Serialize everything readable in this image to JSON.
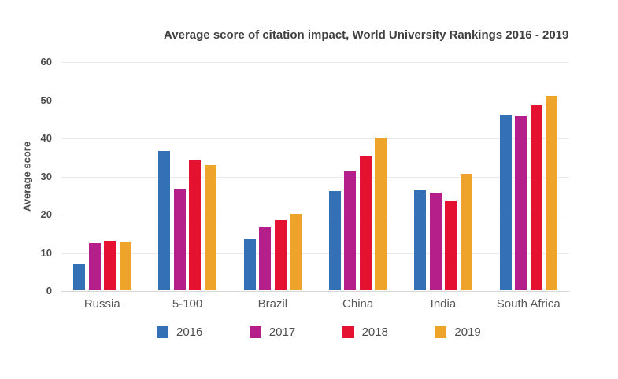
{
  "chart_data": {
    "type": "bar",
    "title": "Average score of citation impact, World University Rankings 2016 - 2019",
    "xlabel": "",
    "ylabel": "Average score",
    "categories": [
      "Russia",
      "5-100",
      "Brazil",
      "China",
      "India",
      "South Africa"
    ],
    "series": [
      {
        "name": "2016",
        "color": "#3470B5",
        "values": [
          6.8,
          36.6,
          13.5,
          26.0,
          26.1,
          46.0
        ]
      },
      {
        "name": "2017",
        "color": "#B51F8A",
        "values": [
          12.4,
          26.5,
          16.5,
          31.2,
          25.6,
          45.8
        ]
      },
      {
        "name": "2018",
        "color": "#E41130",
        "values": [
          13.0,
          34.0,
          18.4,
          35.1,
          23.5,
          48.6
        ]
      },
      {
        "name": "2019",
        "color": "#EEA32B",
        "values": [
          12.5,
          32.8,
          20.0,
          40.0,
          30.6,
          50.9
        ]
      }
    ],
    "ylim": [
      0,
      60
    ],
    "yticks": [
      0,
      10,
      20,
      30,
      40,
      50,
      60
    ],
    "grid": true,
    "legend_position": "bottom",
    "legend": [
      "2016",
      "2017",
      "2018",
      "2019"
    ]
  },
  "style": {
    "background": "#ffffff",
    "title_color": "#404040",
    "axis_text_color": "#4d4d4d",
    "category_text_color": "#595959",
    "gridline_color": "#e9e9e9",
    "baseline_color": "#d8d8d8"
  }
}
